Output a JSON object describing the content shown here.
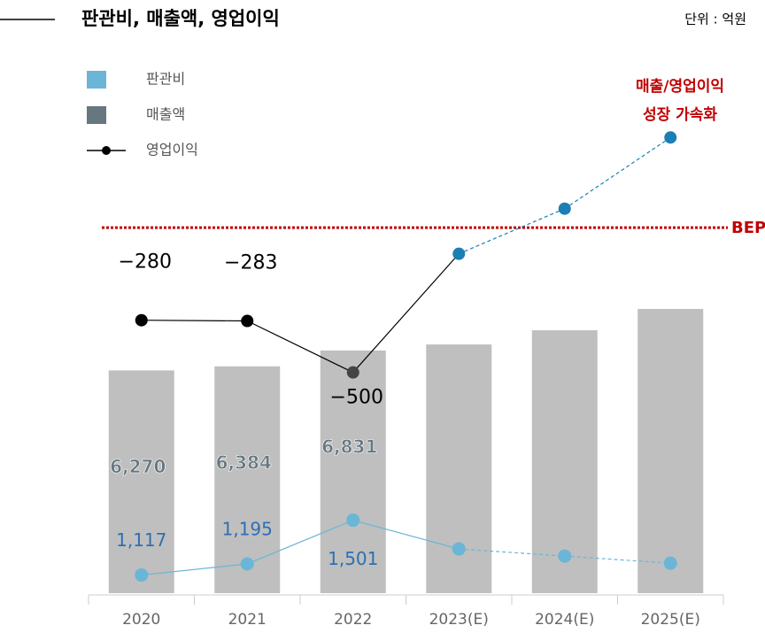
{
  "chart_data": {
    "type": "bar-line",
    "title": "판관비, 매출액, 영업이익",
    "unit": "단위 : 억원",
    "annotation": [
      "매출/영업이익",
      "성장 가속화"
    ],
    "reference_line": {
      "label": "BEP",
      "value": 110,
      "axis": "y3",
      "color": "#c00000"
    },
    "categories": [
      "2020",
      "2021",
      "2022",
      "2023(E)",
      "2024(E)",
      "2025(E)"
    ],
    "dashed_from": 3,
    "ylim": [
      0,
      15700
    ],
    "y2lim": [
      990,
      4900
    ],
    "y3lim": [
      -1430,
      920
    ],
    "series": [
      {
        "name": "판관비",
        "kind": "line",
        "axis": "y2",
        "color": "#6bb5d6",
        "label_color": "#2f6fb3",
        "values": [
          1117,
          1195,
          1501,
          1300,
          1250,
          1200
        ],
        "value_labels": [
          "1,117",
          "1,195",
          "1,501",
          null,
          null,
          null
        ]
      },
      {
        "name": "매출액",
        "kind": "bar",
        "color": "#67777f",
        "bar_color": "#bfbfbf",
        "values": [
          6270,
          6384,
          6831,
          7000,
          7400,
          8000
        ],
        "value_labels": [
          "6,270",
          "6,384",
          "6,831",
          null,
          null,
          null
        ]
      },
      {
        "name": "영업이익",
        "kind": "line",
        "axis": "y3",
        "color": "#000000",
        "estimate_color": "#1a7fb5",
        "values": [
          -280,
          -283,
          -500,
          0,
          190,
          490
        ],
        "value_labels": [
          "−280",
          "−283",
          "−500",
          null,
          null,
          null
        ]
      }
    ]
  }
}
